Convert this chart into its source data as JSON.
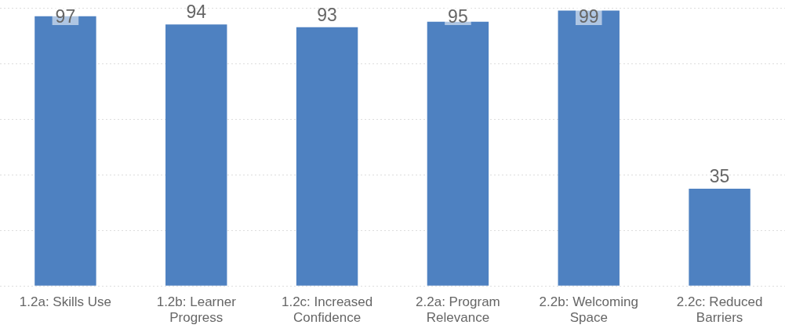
{
  "chart_data": {
    "type": "bar",
    "categories": [
      "1.2a: Skills Use",
      "1.2b: Learner Progress",
      "1.2c: Increased Confidence",
      "2.2a: Program Relevance",
      "2.2b: Welcoming Space",
      "2.2c: Reduced Barriers"
    ],
    "values": [
      97,
      94,
      93,
      95,
      99,
      35
    ],
    "color": "#4e81c1",
    "ylim": [
      0,
      100
    ],
    "yticks": [
      {
        "value": 0,
        "label": null
      },
      {
        "value": 20,
        "label": null
      },
      {
        "value": 40,
        "label": null
      },
      {
        "value": 60,
        "label": null
      },
      {
        "value": 80,
        "label": null
      },
      {
        "value": 100,
        "label": null
      }
    ],
    "tick_labels": "x",
    "grid": "y",
    "data_labels": true
  }
}
